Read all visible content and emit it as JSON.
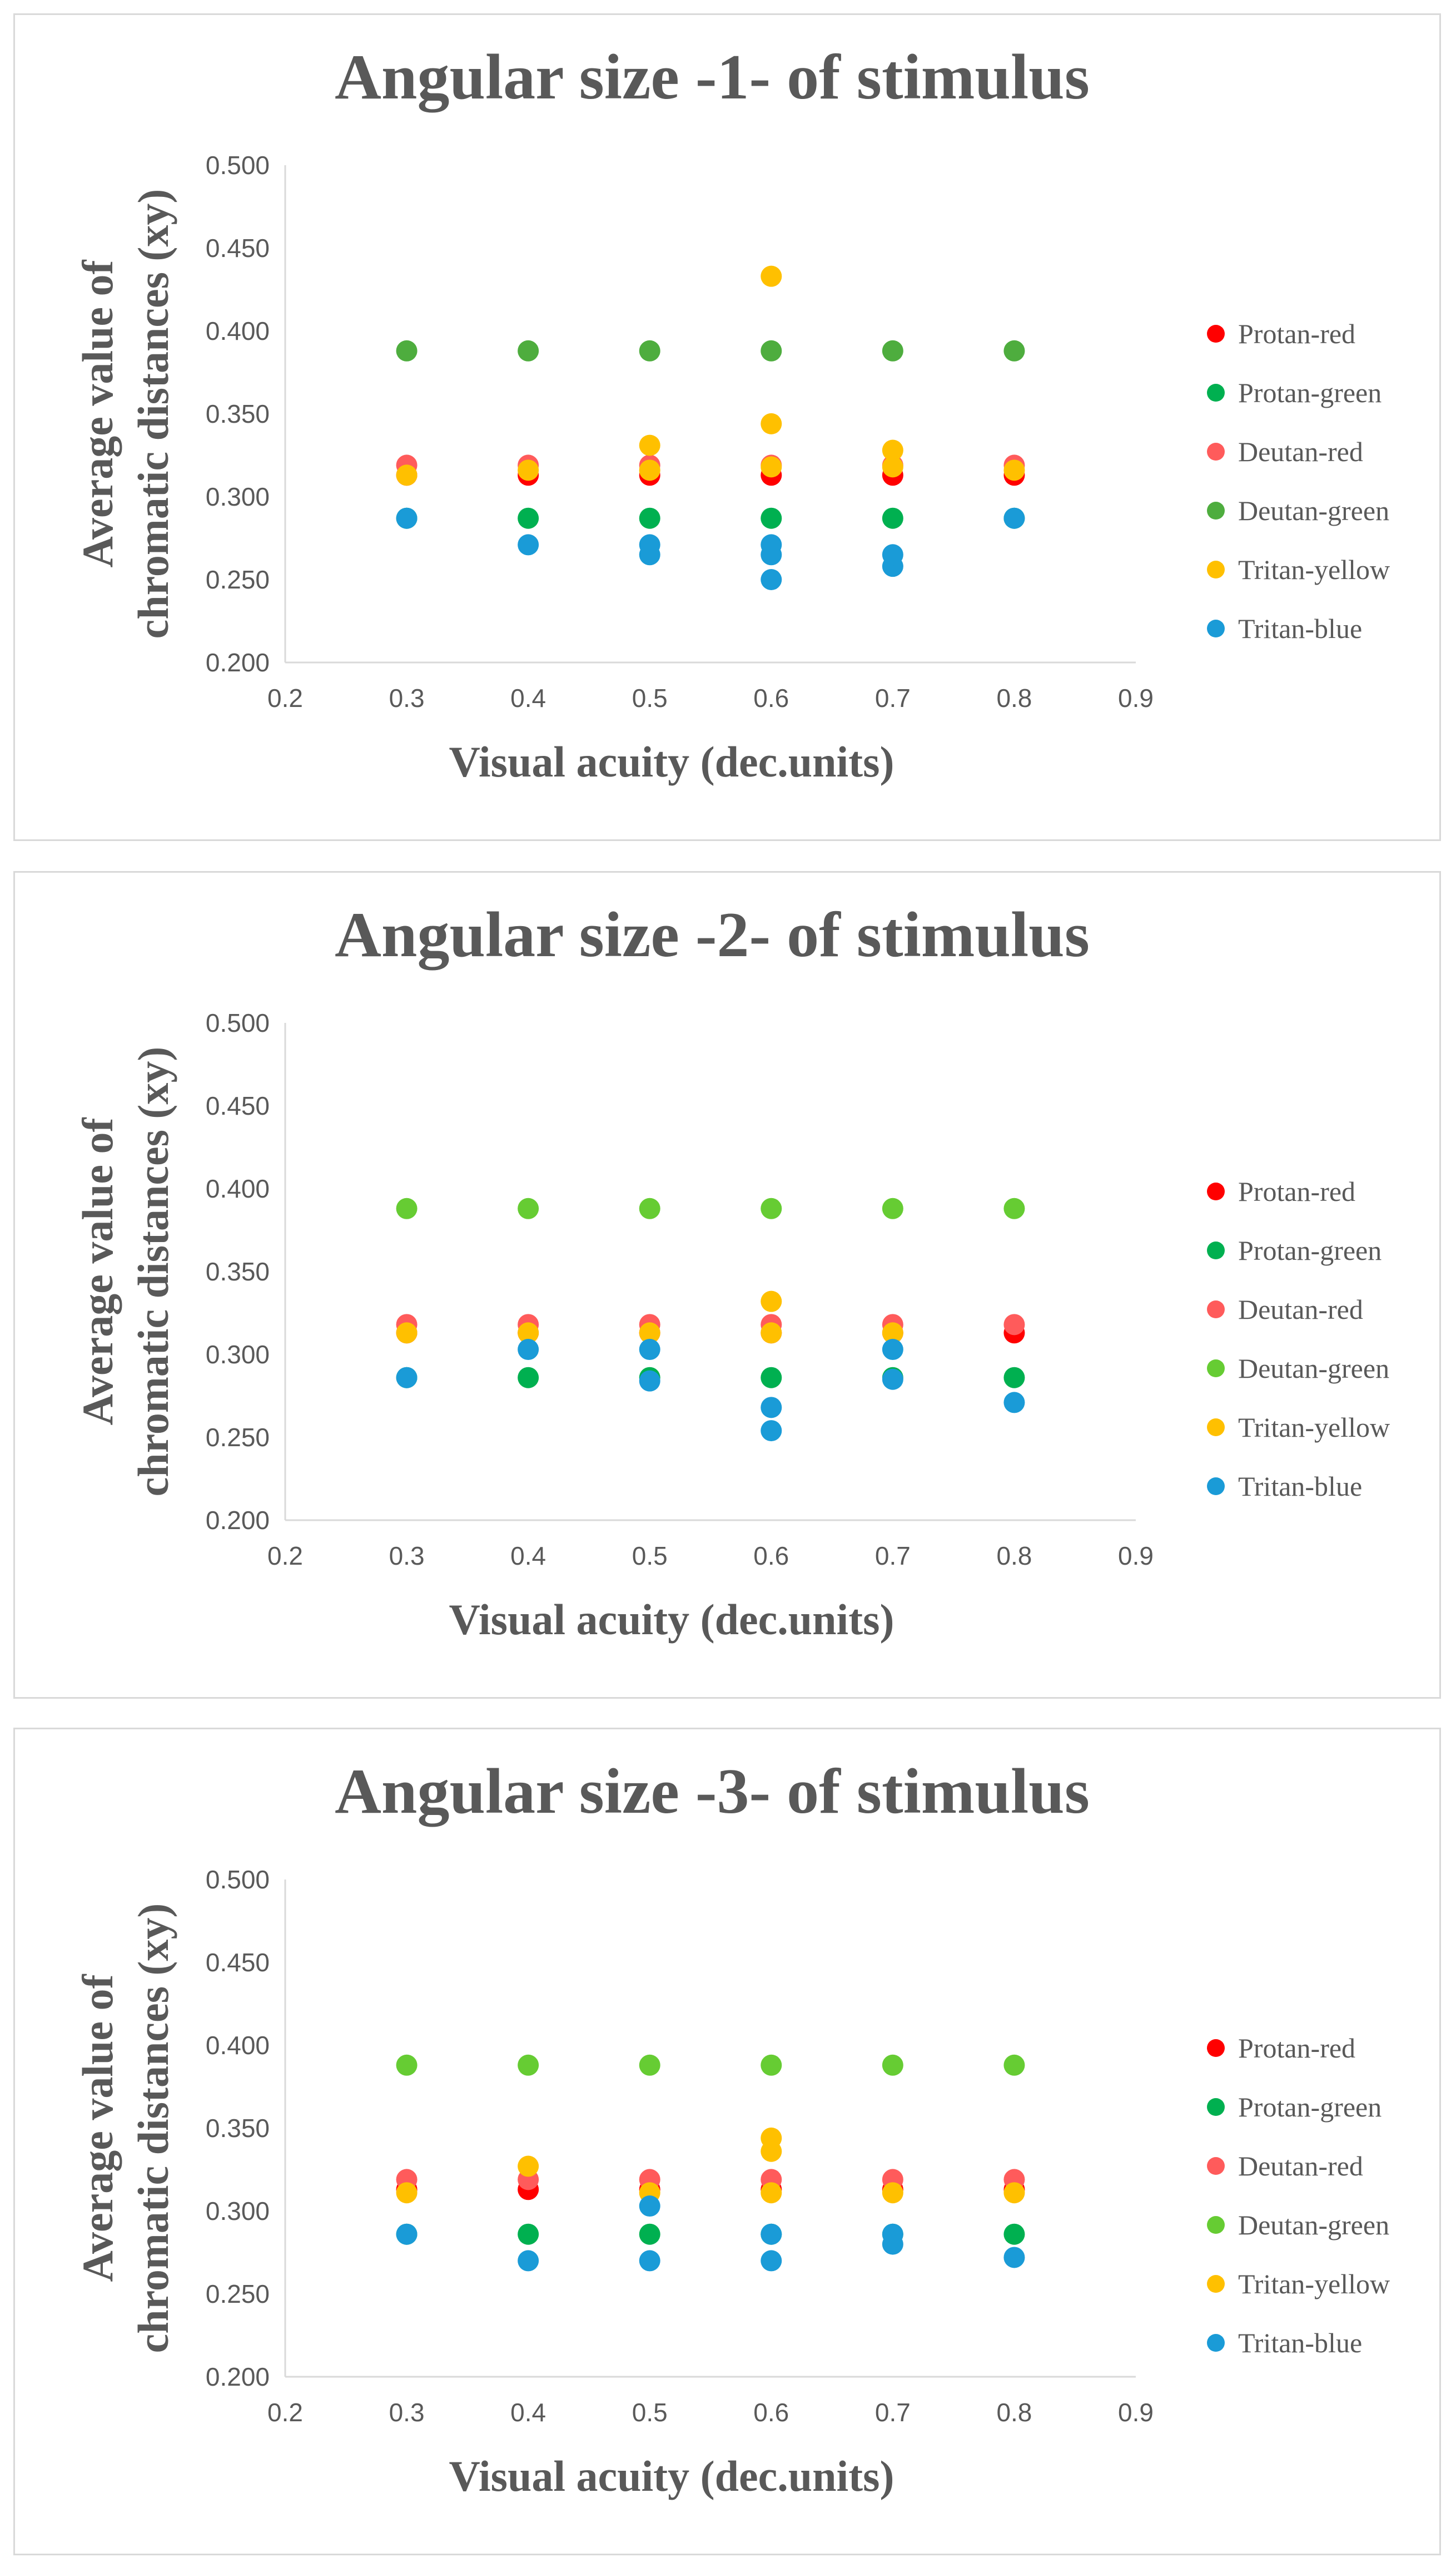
{
  "chart_data": [
    {
      "type": "scatter",
      "title": "Angular size -1- of stimulus",
      "xlabel": "Visual acuity (dec.units)",
      "ylabel_lines": [
        "Average value of",
        "chromatic distances (xy)"
      ],
      "xlim": [
        0.2,
        0.9
      ],
      "ylim": [
        0.2,
        0.5
      ],
      "xticks": [
        "0.2",
        "0.3",
        "0.4",
        "0.5",
        "0.6",
        "0.7",
        "0.8",
        "0.9"
      ],
      "yticks": [
        "0.200",
        "0.250",
        "0.300",
        "0.350",
        "0.400",
        "0.450",
        "0.500"
      ],
      "series": [
        {
          "name": "Protan-red",
          "color": "#ff0000",
          "points": [
            [
              0.3,
              0.313
            ],
            [
              0.4,
              0.313
            ],
            [
              0.5,
              0.313
            ],
            [
              0.6,
              0.313
            ],
            [
              0.7,
              0.313
            ],
            [
              0.8,
              0.313
            ]
          ]
        },
        {
          "name": "Protan-green",
          "color": "#00b050",
          "points": [
            [
              0.3,
              0.287
            ],
            [
              0.4,
              0.287
            ],
            [
              0.5,
              0.287
            ],
            [
              0.6,
              0.287
            ],
            [
              0.7,
              0.287
            ],
            [
              0.8,
              0.287
            ]
          ]
        },
        {
          "name": "Deutan-red",
          "color": "#ff5b5b",
          "points": [
            [
              0.3,
              0.319
            ],
            [
              0.4,
              0.319
            ],
            [
              0.5,
              0.319
            ],
            [
              0.6,
              0.319
            ],
            [
              0.7,
              0.319
            ],
            [
              0.8,
              0.319
            ]
          ]
        },
        {
          "name": "Deutan-green",
          "color": "#4ead3e",
          "points": [
            [
              0.3,
              0.388
            ],
            [
              0.4,
              0.388
            ],
            [
              0.5,
              0.388
            ],
            [
              0.6,
              0.388
            ],
            [
              0.7,
              0.388
            ],
            [
              0.8,
              0.388
            ]
          ]
        },
        {
          "name": "Tritan-yellow",
          "color": "#ffc000",
          "points": [
            [
              0.3,
              0.313
            ],
            [
              0.4,
              0.316
            ],
            [
              0.5,
              0.316
            ],
            [
              0.5,
              0.331
            ],
            [
              0.6,
              0.318
            ],
            [
              0.6,
              0.344
            ],
            [
              0.6,
              0.433
            ],
            [
              0.7,
              0.318
            ],
            [
              0.7,
              0.328
            ],
            [
              0.8,
              0.316
            ]
          ]
        },
        {
          "name": "Tritan-blue",
          "color": "#1a9bd7",
          "points": [
            [
              0.3,
              0.287
            ],
            [
              0.4,
              0.271
            ],
            [
              0.5,
              0.265
            ],
            [
              0.5,
              0.271
            ],
            [
              0.6,
              0.25
            ],
            [
              0.6,
              0.265
            ],
            [
              0.6,
              0.271
            ],
            [
              0.7,
              0.258
            ],
            [
              0.7,
              0.265
            ],
            [
              0.8,
              0.287
            ]
          ]
        }
      ]
    },
    {
      "type": "scatter",
      "title": "Angular size -2- of stimulus",
      "xlabel": "Visual acuity (dec.units)",
      "ylabel_lines": [
        "Average value of",
        "chromatic distances (xy)"
      ],
      "xlim": [
        0.2,
        0.9
      ],
      "ylim": [
        0.2,
        0.5
      ],
      "xticks": [
        "0.2",
        "0.3",
        "0.4",
        "0.5",
        "0.6",
        "0.7",
        "0.8",
        "0.9"
      ],
      "yticks": [
        "0.200",
        "0.250",
        "0.300",
        "0.350",
        "0.400",
        "0.450",
        "0.500"
      ],
      "series": [
        {
          "name": "Protan-red",
          "color": "#ff0000",
          "points": [
            [
              0.3,
              0.313
            ],
            [
              0.4,
              0.313
            ],
            [
              0.5,
              0.313
            ],
            [
              0.6,
              0.313
            ],
            [
              0.7,
              0.313
            ],
            [
              0.8,
              0.313
            ]
          ]
        },
        {
          "name": "Protan-green",
          "color": "#00b050",
          "points": [
            [
              0.3,
              0.286
            ],
            [
              0.4,
              0.286
            ],
            [
              0.5,
              0.286
            ],
            [
              0.6,
              0.286
            ],
            [
              0.7,
              0.286
            ],
            [
              0.8,
              0.286
            ]
          ]
        },
        {
          "name": "Deutan-red",
          "color": "#ff5b5b",
          "points": [
            [
              0.3,
              0.318
            ],
            [
              0.4,
              0.318
            ],
            [
              0.5,
              0.318
            ],
            [
              0.6,
              0.318
            ],
            [
              0.7,
              0.318
            ],
            [
              0.8,
              0.318
            ]
          ]
        },
        {
          "name": "Deutan-green",
          "color": "#66cc33",
          "points": [
            [
              0.3,
              0.388
            ],
            [
              0.4,
              0.388
            ],
            [
              0.5,
              0.388
            ],
            [
              0.6,
              0.388
            ],
            [
              0.7,
              0.388
            ],
            [
              0.8,
              0.388
            ]
          ]
        },
        {
          "name": "Tritan-yellow",
          "color": "#ffc000",
          "points": [
            [
              0.3,
              0.313
            ],
            [
              0.4,
              0.313
            ],
            [
              0.5,
              0.313
            ],
            [
              0.6,
              0.313
            ],
            [
              0.6,
              0.332
            ],
            [
              0.7,
              0.313
            ]
          ]
        },
        {
          "name": "Tritan-blue",
          "color": "#1a9bd7",
          "points": [
            [
              0.3,
              0.286
            ],
            [
              0.4,
              0.303
            ],
            [
              0.5,
              0.284
            ],
            [
              0.5,
              0.303
            ],
            [
              0.6,
              0.254
            ],
            [
              0.6,
              0.268
            ],
            [
              0.7,
              0.285
            ],
            [
              0.7,
              0.303
            ],
            [
              0.8,
              0.271
            ]
          ]
        }
      ]
    },
    {
      "type": "scatter",
      "title": "Angular size -3- of stimulus",
      "xlabel": "Visual acuity (dec.units)",
      "ylabel_lines": [
        "Average value of",
        "chromatic distances (xy)"
      ],
      "xlim": [
        0.2,
        0.9
      ],
      "ylim": [
        0.2,
        0.5
      ],
      "xticks": [
        "0.2",
        "0.3",
        "0.4",
        "0.5",
        "0.6",
        "0.7",
        "0.8",
        "0.9"
      ],
      "yticks": [
        "0.200",
        "0.250",
        "0.300",
        "0.350",
        "0.400",
        "0.450",
        "0.500"
      ],
      "series": [
        {
          "name": "Protan-red",
          "color": "#ff0000",
          "points": [
            [
              0.3,
              0.313
            ],
            [
              0.4,
              0.313
            ],
            [
              0.5,
              0.313
            ],
            [
              0.6,
              0.313
            ],
            [
              0.7,
              0.313
            ],
            [
              0.8,
              0.313
            ]
          ]
        },
        {
          "name": "Protan-green",
          "color": "#00b050",
          "points": [
            [
              0.3,
              0.286
            ],
            [
              0.4,
              0.286
            ],
            [
              0.5,
              0.286
            ],
            [
              0.6,
              0.286
            ],
            [
              0.7,
              0.286
            ],
            [
              0.8,
              0.286
            ]
          ]
        },
        {
          "name": "Deutan-red",
          "color": "#ff5b5b",
          "points": [
            [
              0.3,
              0.319
            ],
            [
              0.4,
              0.319
            ],
            [
              0.5,
              0.319
            ],
            [
              0.6,
              0.319
            ],
            [
              0.7,
              0.319
            ],
            [
              0.8,
              0.319
            ]
          ]
        },
        {
          "name": "Deutan-green",
          "color": "#66cc33",
          "points": [
            [
              0.3,
              0.388
            ],
            [
              0.4,
              0.388
            ],
            [
              0.5,
              0.388
            ],
            [
              0.6,
              0.388
            ],
            [
              0.7,
              0.388
            ],
            [
              0.8,
              0.388
            ]
          ]
        },
        {
          "name": "Tritan-yellow",
          "color": "#ffc000",
          "points": [
            [
              0.3,
              0.311
            ],
            [
              0.4,
              0.327
            ],
            [
              0.5,
              0.311
            ],
            [
              0.6,
              0.311
            ],
            [
              0.6,
              0.336
            ],
            [
              0.6,
              0.344
            ],
            [
              0.7,
              0.311
            ],
            [
              0.8,
              0.311
            ]
          ]
        },
        {
          "name": "Tritan-blue",
          "color": "#1a9bd7",
          "points": [
            [
              0.3,
              0.286
            ],
            [
              0.4,
              0.27
            ],
            [
              0.5,
              0.27
            ],
            [
              0.5,
              0.303
            ],
            [
              0.6,
              0.27
            ],
            [
              0.6,
              0.286
            ],
            [
              0.7,
              0.28
            ],
            [
              0.7,
              0.286
            ],
            [
              0.8,
              0.272
            ]
          ]
        }
      ]
    }
  ]
}
